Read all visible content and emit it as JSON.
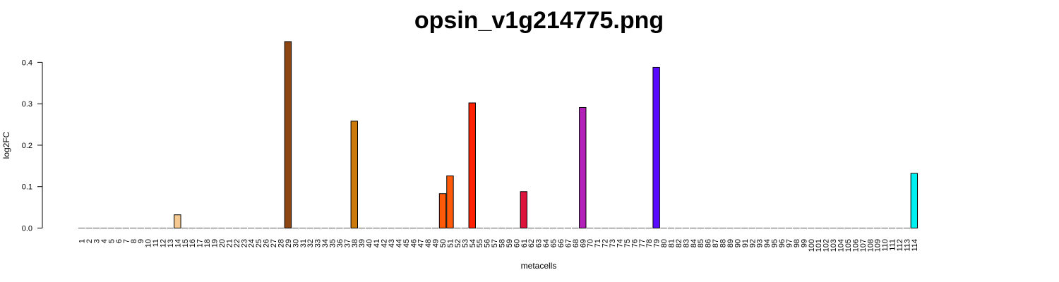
{
  "chart_data": {
    "type": "bar",
    "title": "opsin_v1g214775.png",
    "xlabel": "metacells",
    "ylabel": "log2FC",
    "ylim": [
      0,
      0.45
    ],
    "yticks": [
      "0.0",
      "0.1",
      "0.2",
      "0.3",
      "0.4"
    ],
    "grid": false,
    "legend": "none",
    "categories": [
      "1",
      "2",
      "3",
      "4",
      "5",
      "6",
      "7",
      "8",
      "9",
      "10",
      "11",
      "12",
      "13",
      "14",
      "15",
      "16",
      "17",
      "18",
      "19",
      "20",
      "21",
      "22",
      "23",
      "24",
      "25",
      "26",
      "27",
      "28",
      "29",
      "30",
      "31",
      "32",
      "33",
      "34",
      "35",
      "36",
      "37",
      "38",
      "39",
      "40",
      "41",
      "42",
      "43",
      "44",
      "45",
      "46",
      "47",
      "48",
      "49",
      "50",
      "51",
      "52",
      "53",
      "54",
      "55",
      "56",
      "57",
      "58",
      "59",
      "60",
      "61",
      "62",
      "63",
      "64",
      "65",
      "66",
      "67",
      "68",
      "69",
      "70",
      "71",
      "72",
      "73",
      "74",
      "75",
      "76",
      "77",
      "78",
      "79",
      "80",
      "81",
      "82",
      "83",
      "84",
      "85",
      "86",
      "87",
      "88",
      "89",
      "90",
      "91",
      "92",
      "93",
      "94",
      "95",
      "96",
      "97",
      "98",
      "99",
      "100",
      "101",
      "102",
      "103",
      "104",
      "105",
      "106",
      "107",
      "108",
      "109",
      "110",
      "111",
      "112",
      "113",
      "114"
    ],
    "bars": [
      {
        "metacell": "14",
        "value": 0.032,
        "color": "#f5c98f"
      },
      {
        "metacell": "29",
        "value": 0.45,
        "color": "#8b4513"
      },
      {
        "metacell": "38",
        "value": 0.258,
        "color": "#cc7a0c"
      },
      {
        "metacell": "50",
        "value": 0.083,
        "color": "#ff5a0a"
      },
      {
        "metacell": "51",
        "value": 0.126,
        "color": "#ff5a0a"
      },
      {
        "metacell": "54",
        "value": 0.302,
        "color": "#ff2200"
      },
      {
        "metacell": "61",
        "value": 0.088,
        "color": "#dc143c"
      },
      {
        "metacell": "69",
        "value": 0.291,
        "color": "#b320b8"
      },
      {
        "metacell": "79",
        "value": 0.388,
        "color": "#5a0aff"
      },
      {
        "metacell": "114",
        "value": 0.132,
        "color": "#00f0f0"
      }
    ]
  }
}
